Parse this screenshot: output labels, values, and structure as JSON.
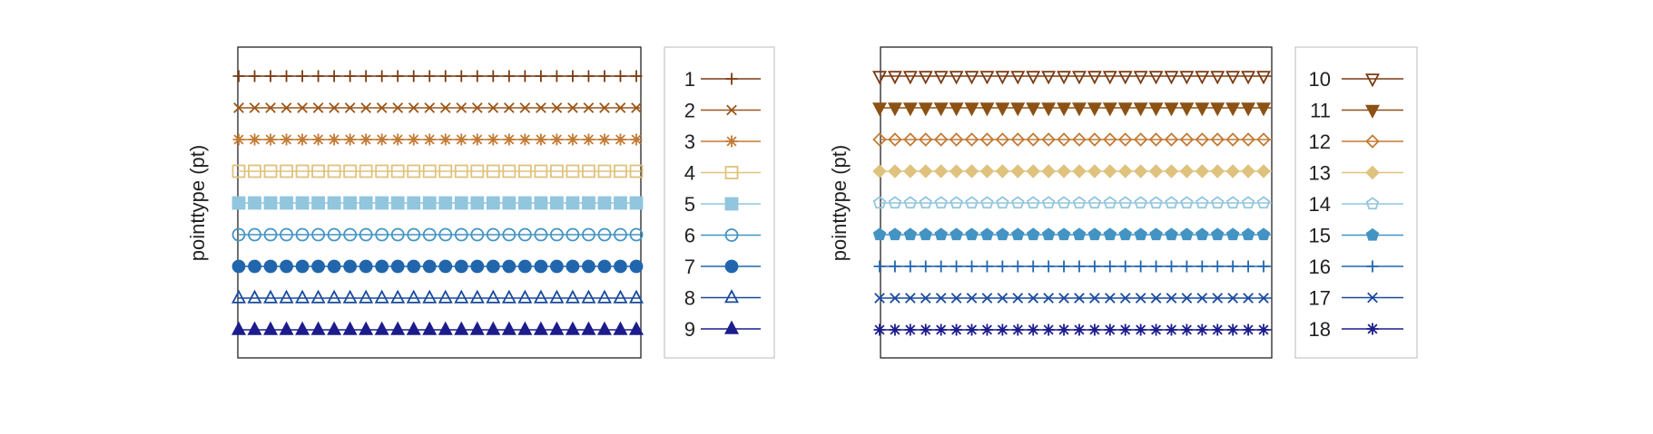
{
  "chart_data": [
    {
      "type": "line",
      "ylabel": "pointtype (pt)",
      "xlabel": "",
      "title": "",
      "grid": false,
      "legend_position": "right",
      "series": [
        {
          "name": "1",
          "pointtype": "plus",
          "color": "#7a3b12",
          "y": 9
        },
        {
          "name": "2",
          "pointtype": "cross",
          "color": "#9a5618",
          "y": 8
        },
        {
          "name": "3",
          "pointtype": "star",
          "color": "#c27a35",
          "y": 7
        },
        {
          "name": "4",
          "pointtype": "square-open",
          "color": "#dfc27d",
          "y": 6
        },
        {
          "name": "5",
          "pointtype": "square-filled",
          "color": "#92c5de",
          "y": 5
        },
        {
          "name": "6",
          "pointtype": "circle-open",
          "color": "#4393c3",
          "y": 4
        },
        {
          "name": "7",
          "pointtype": "circle-filled",
          "color": "#2166ac",
          "y": 3
        },
        {
          "name": "8",
          "pointtype": "triangle-up-open",
          "color": "#1a4a9c",
          "y": 2
        },
        {
          "name": "9",
          "pointtype": "triangle-up-filled",
          "color": "#1c1c8c",
          "y": 1
        }
      ]
    },
    {
      "type": "line",
      "ylabel": "pointtype (pt)",
      "xlabel": "",
      "title": "",
      "grid": false,
      "legend_position": "right",
      "series": [
        {
          "name": "10",
          "pointtype": "triangle-down-open",
          "color": "#7a3b12",
          "y": 9
        },
        {
          "name": "11",
          "pointtype": "triangle-down-filled",
          "color": "#8c5114",
          "y": 8
        },
        {
          "name": "12",
          "pointtype": "diamond-open",
          "color": "#c27a35",
          "y": 7
        },
        {
          "name": "13",
          "pointtype": "diamond-filled",
          "color": "#dfc27d",
          "y": 6
        },
        {
          "name": "14",
          "pointtype": "pentagon-open",
          "color": "#92c5de",
          "y": 5
        },
        {
          "name": "15",
          "pointtype": "pentagon-filled",
          "color": "#4393c3",
          "y": 4
        },
        {
          "name": "16",
          "pointtype": "plus",
          "color": "#2166ac",
          "y": 3
        },
        {
          "name": "17",
          "pointtype": "cross",
          "color": "#1a4a9c",
          "y": 2
        },
        {
          "name": "18",
          "pointtype": "star",
          "color": "#1c1c8c",
          "y": 1
        }
      ]
    }
  ]
}
